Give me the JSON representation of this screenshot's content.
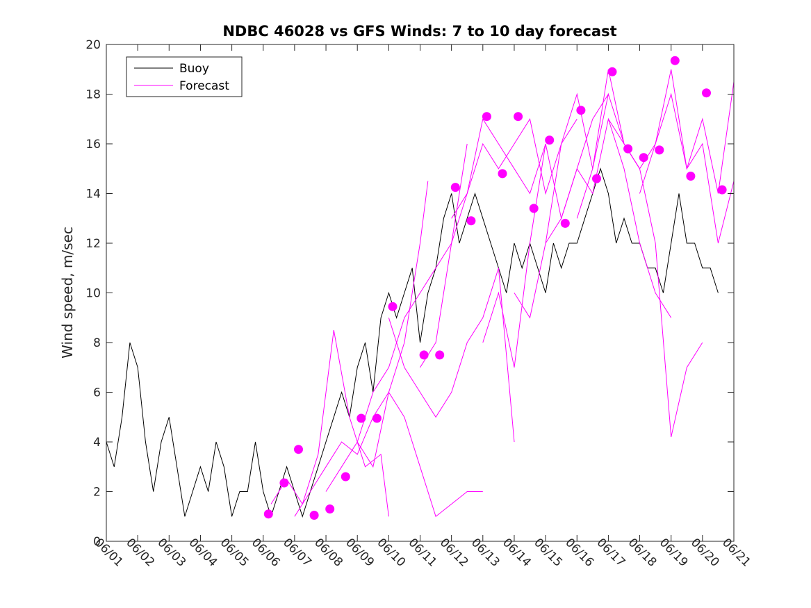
{
  "chart_data": {
    "type": "line",
    "title": "NDBC 46028 vs GFS Winds: 7 to 10 day forecast",
    "xlabel": "",
    "ylabel": "Wind speed, m/sec",
    "ylim": [
      0,
      20
    ],
    "yticks": [
      0,
      2,
      4,
      6,
      8,
      10,
      12,
      14,
      16,
      18,
      20
    ],
    "xlim": [
      "06/01",
      "06/21"
    ],
    "xticks": [
      "06/01",
      "06/02",
      "06/03",
      "06/04",
      "06/05",
      "06/06",
      "06/07",
      "06/08",
      "06/09",
      "06/10",
      "06/11",
      "06/12",
      "06/13",
      "06/14",
      "06/15",
      "06/16",
      "06/17",
      "06/18",
      "06/19",
      "06/20",
      "06/21"
    ],
    "grid": false,
    "legend_position": "top-left",
    "colors": {
      "buoy": "#000000",
      "forecast": "#ff00ff"
    },
    "series": [
      {
        "name": "Buoy",
        "style": "line",
        "x": [
          "06/01 00:00",
          "06/01 06:00",
          "06/01 12:00",
          "06/01 18:00",
          "06/02 00:00",
          "06/02 06:00",
          "06/02 12:00",
          "06/02 18:00",
          "06/03 00:00",
          "06/03 06:00",
          "06/03 12:00",
          "06/03 18:00",
          "06/04 00:00",
          "06/04 06:00",
          "06/04 12:00",
          "06/04 18:00",
          "06/05 00:00",
          "06/05 06:00",
          "06/05 12:00",
          "06/05 18:00",
          "06/06 00:00",
          "06/06 06:00",
          "06/06 12:00",
          "06/06 18:00",
          "06/07 00:00",
          "06/07 06:00",
          "06/07 12:00",
          "06/07 18:00",
          "06/08 00:00",
          "06/08 06:00",
          "06/08 12:00",
          "06/08 18:00",
          "06/09 00:00",
          "06/09 06:00",
          "06/09 12:00",
          "06/09 18:00",
          "06/10 00:00",
          "06/10 06:00",
          "06/10 12:00",
          "06/10 18:00",
          "06/11 00:00",
          "06/11 06:00",
          "06/11 12:00",
          "06/11 18:00",
          "06/12 00:00",
          "06/12 06:00",
          "06/12 12:00",
          "06/12 18:00",
          "06/13 00:00",
          "06/13 06:00",
          "06/13 12:00",
          "06/13 18:00",
          "06/14 00:00",
          "06/14 06:00",
          "06/14 12:00",
          "06/14 18:00",
          "06/15 00:00",
          "06/15 06:00",
          "06/15 12:00",
          "06/15 18:00",
          "06/16 00:00",
          "06/16 06:00",
          "06/16 12:00",
          "06/16 18:00",
          "06/17 00:00",
          "06/17 06:00",
          "06/17 12:00",
          "06/17 18:00",
          "06/18 00:00",
          "06/18 06:00",
          "06/18 12:00",
          "06/18 18:00",
          "06/19 00:00",
          "06/19 06:00",
          "06/19 12:00",
          "06/19 18:00",
          "06/20 00:00",
          "06/20 06:00",
          "06/20 12:00"
        ],
        "values": [
          4,
          3,
          5,
          8,
          7,
          4,
          2,
          4,
          5,
          3,
          1,
          2,
          3,
          2,
          4,
          3,
          1,
          2,
          2,
          4,
          2,
          1,
          2,
          3,
          2,
          1,
          2,
          3,
          4,
          5,
          6,
          5,
          7,
          8,
          6,
          9,
          10,
          9,
          10,
          11,
          8,
          10,
          11,
          13,
          14,
          12,
          13,
          14,
          13,
          12,
          11,
          10,
          12,
          11,
          12,
          11,
          10,
          12,
          11,
          12,
          12,
          13,
          14,
          15,
          14,
          12,
          13,
          12,
          12,
          11,
          11,
          10,
          12,
          14,
          12,
          12,
          11,
          11,
          10
        ]
      },
      {
        "name": "Forecast",
        "style": "line",
        "runs": [
          {
            "x": [
              "06/06 06:00",
              "06/06 18:00",
              "06/07 06:00",
              "06/07 18:00",
              "06/08 06:00",
              "06/08 18:00",
              "06/09 06:00",
              "06/09 18:00",
              "06/10 00:00"
            ],
            "values": [
              1.5,
              2.5,
              1.5,
              3.5,
              8.5,
              5,
              3,
              3.5,
              1
            ]
          },
          {
            "x": [
              "06/07 00:00",
              "06/07 12:00",
              "06/08 00:00",
              "06/08 12:00",
              "06/09 00:00",
              "06/09 12:00",
              "06/10 00:00",
              "06/10 12:00",
              "06/11 00:00",
              "06/11 06:00"
            ],
            "values": [
              1,
              2,
              3,
              4,
              3.5,
              5,
              6,
              8,
              12,
              14.5
            ]
          },
          {
            "x": [
              "06/08 00:00",
              "06/08 12:00",
              "06/09 00:00",
              "06/09 12:00",
              "06/10 00:00",
              "06/10 12:00",
              "06/11 00:00",
              "06/11 12:00",
              "06/12 00:00",
              "06/12 12:00"
            ],
            "values": [
              2,
              3,
              4,
              6,
              7,
              9,
              10,
              11,
              12,
              16
            ]
          },
          {
            "x": [
              "06/09 00:00",
              "06/09 12:00",
              "06/10 00:00",
              "06/10 12:00",
              "06/11 00:00",
              "06/11 12:00",
              "06/12 00:00",
              "06/12 12:00",
              "06/13 00:00"
            ],
            "values": [
              4,
              3,
              6,
              5,
              3,
              1,
              1.5,
              2,
              2
            ]
          },
          {
            "x": [
              "06/10 00:00",
              "06/10 12:00",
              "06/11 00:00",
              "06/11 12:00",
              "06/12 00:00",
              "06/12 12:00",
              "06/13 00:00",
              "06/13 12:00",
              "06/14 00:00"
            ],
            "values": [
              9,
              7,
              6,
              5,
              6,
              8,
              9,
              11,
              4
            ]
          },
          {
            "x": [
              "06/11 00:00",
              "06/11 12:00",
              "06/12 00:00",
              "06/12 12:00",
              "06/13 00:00",
              "06/13 12:00",
              "06/14 00:00",
              "06/14 12:00",
              "06/15 00:00"
            ],
            "values": [
              7,
              8,
              12,
              14,
              17,
              16,
              15,
              14,
              16
            ]
          },
          {
            "x": [
              "06/12 00:00",
              "06/12 12:00",
              "06/13 00:00",
              "06/13 12:00",
              "06/14 00:00",
              "06/14 12:00",
              "06/15 00:00",
              "06/15 12:00",
              "06/16 00:00"
            ],
            "values": [
              13,
              14,
              16,
              15,
              16,
              17,
              14,
              16,
              17
            ]
          },
          {
            "x": [
              "06/13 00:00",
              "06/13 12:00",
              "06/14 00:00",
              "06/14 12:00",
              "06/15 00:00",
              "06/15 12:00",
              "06/16 00:00",
              "06/16 12:00",
              "06/17 00:00"
            ],
            "values": [
              8,
              10,
              7,
              12,
              16,
              13,
              15,
              17,
              18
            ]
          },
          {
            "x": [
              "06/14 00:00",
              "06/14 12:00",
              "06/15 00:00",
              "06/15 12:00",
              "06/16 00:00",
              "06/16 12:00",
              "06/17 00:00",
              "06/17 12:00",
              "06/18 00:00"
            ],
            "values": [
              10,
              9,
              12,
              16,
              18,
              15,
              19,
              16,
              15
            ]
          },
          {
            "x": [
              "06/15 00:00",
              "06/15 12:00",
              "06/16 00:00",
              "06/16 12:00",
              "06/17 00:00",
              "06/17 12:00",
              "06/18 00:00",
              "06/18 12:00",
              "06/19 00:00"
            ],
            "values": [
              12,
              13,
              15,
              14,
              17,
              15,
              12,
              10,
              9
            ]
          },
          {
            "x": [
              "06/16 00:00",
              "06/16 12:00",
              "06/17 00:00",
              "06/17 12:00",
              "06/18 00:00",
              "06/18 12:00",
              "06/19 00:00",
              "06/19 12:00",
              "06/20 00:00"
            ],
            "values": [
              13,
              15,
              18,
              16,
              15,
              12,
              4.2,
              7,
              8
            ]
          },
          {
            "x": [
              "06/17 00:00",
              "06/17 12:00",
              "06/18 00:00",
              "06/18 12:00",
              "06/19 00:00",
              "06/19 12:00",
              "06/20 00:00",
              "06/20 12:00",
              "06/21 00:00"
            ],
            "values": [
              17,
              16,
              15,
              16,
              18,
              15,
              17,
              14,
              18.5
            ]
          },
          {
            "x": [
              "06/18 00:00",
              "06/18 12:00",
              "06/19 00:00",
              "06/19 12:00",
              "06/20 00:00",
              "06/20 12:00",
              "06/21 00:00"
            ],
            "values": [
              14,
              16,
              19,
              15,
              16,
              12,
              14.5
            ]
          }
        ],
        "markers": {
          "x": [
            "06/06 04:00",
            "06/06 16:00",
            "06/07 03:00",
            "06/07 15:00",
            "06/08 03:00",
            "06/08 15:00",
            "06/09 03:00",
            "06/09 15:00",
            "06/10 03:00",
            "06/11 03:00",
            "06/11 15:00",
            "06/12 03:00",
            "06/12 15:00",
            "06/13 03:00",
            "06/13 15:00",
            "06/14 03:00",
            "06/14 15:00",
            "06/15 03:00",
            "06/15 15:00",
            "06/16 03:00",
            "06/16 15:00",
            "06/17 03:00",
            "06/17 15:00",
            "06/18 03:00",
            "06/18 15:00",
            "06/19 03:00",
            "06/19 15:00",
            "06/20 03:00",
            "06/20 15:00"
          ],
          "values": [
            1.1,
            2.35,
            3.7,
            1.05,
            1.3,
            2.6,
            4.95,
            4.95,
            9.45,
            7.5,
            7.5,
            14.25,
            12.9,
            17.1,
            14.8,
            17.1,
            13.4,
            16.15,
            12.8,
            17.35,
            14.6,
            18.9,
            15.8,
            15.45,
            15.75,
            19.35,
            14.7,
            18.05,
            14.15
          ]
        }
      }
    ]
  }
}
